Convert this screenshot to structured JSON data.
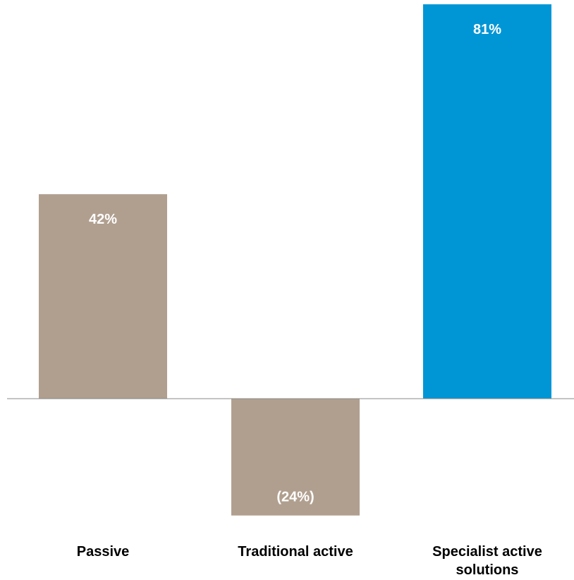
{
  "chart_data": {
    "type": "bar",
    "title": "",
    "xlabel": "",
    "ylabel": "",
    "categories": [
      "Passive",
      "Traditional active",
      "Specialist active solutions"
    ],
    "category_lines": [
      [
        "Passive"
      ],
      [
        "Traditional active"
      ],
      [
        "Specialist active",
        "solutions"
      ]
    ],
    "values": [
      42,
      -24,
      81
    ],
    "value_labels": [
      "42%",
      "(24%)",
      "81%"
    ],
    "colors": [
      "#b09f8f",
      "#b09f8f",
      "#0096d6"
    ],
    "axis_color": "#8a8a8a",
    "ylim": [
      -24,
      81
    ],
    "grid": false,
    "legend": "none"
  }
}
